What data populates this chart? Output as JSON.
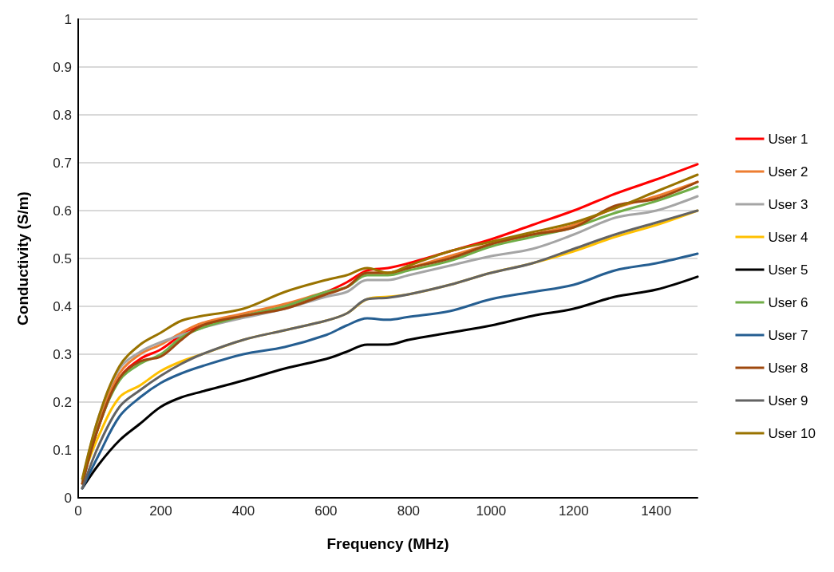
{
  "chart_data": {
    "type": "line",
    "xlabel": "Frequency (MHz)",
    "ylabel": "Conductivity (S/m)",
    "xlim": [
      0,
      1500
    ],
    "xticks": [
      0,
      200,
      400,
      600,
      800,
      1000,
      1200,
      1400
    ],
    "ylim": [
      0,
      1
    ],
    "yticks": [
      0,
      0.1,
      0.2,
      0.3,
      0.4,
      0.5,
      0.6,
      0.7,
      0.8,
      0.9,
      1
    ],
    "grid": "y",
    "legend": "right",
    "marker": "none",
    "line_style": "solid",
    "x": [
      10,
      50,
      100,
      150,
      200,
      250,
      300,
      400,
      500,
      600,
      650,
      700,
      750,
      800,
      900,
      1000,
      1100,
      1200,
      1300,
      1400,
      1500
    ],
    "series": [
      {
        "name": "User 1",
        "color": "#ff0000",
        "values": [
          0.03,
          0.15,
          0.25,
          0.29,
          0.31,
          0.34,
          0.36,
          0.38,
          0.4,
          0.43,
          0.45,
          0.475,
          0.48,
          0.49,
          0.515,
          0.54,
          0.57,
          0.6,
          0.635,
          0.665,
          0.697
        ]
      },
      {
        "name": "User 2",
        "color": "#ed7d31",
        "values": [
          0.03,
          0.16,
          0.26,
          0.3,
          0.32,
          0.345,
          0.365,
          0.385,
          0.405,
          0.43,
          0.44,
          0.47,
          0.47,
          0.48,
          0.505,
          0.53,
          0.55,
          0.57,
          0.605,
          0.63,
          0.66
        ]
      },
      {
        "name": "User 3",
        "color": "#a5a5a5",
        "values": [
          0.035,
          0.17,
          0.27,
          0.305,
          0.325,
          0.34,
          0.355,
          0.376,
          0.395,
          0.42,
          0.43,
          0.455,
          0.455,
          0.465,
          0.485,
          0.505,
          0.52,
          0.55,
          0.585,
          0.6,
          0.63
        ]
      },
      {
        "name": "User 4",
        "color": "#ffc000",
        "values": [
          0.04,
          0.13,
          0.21,
          0.235,
          0.265,
          0.285,
          0.3,
          0.33,
          0.35,
          0.37,
          0.385,
          0.415,
          0.42,
          0.425,
          0.445,
          0.47,
          0.49,
          0.515,
          0.545,
          0.57,
          0.6
        ]
      },
      {
        "name": "User 5",
        "color": "#000000",
        "values": [
          0.02,
          0.07,
          0.12,
          0.155,
          0.19,
          0.21,
          0.222,
          0.245,
          0.27,
          0.29,
          0.305,
          0.32,
          0.32,
          0.33,
          0.345,
          0.36,
          0.38,
          0.395,
          0.42,
          0.435,
          0.462
        ]
      },
      {
        "name": "User 6",
        "color": "#70ad47",
        "values": [
          0.03,
          0.15,
          0.245,
          0.28,
          0.3,
          0.335,
          0.355,
          0.38,
          0.4,
          0.43,
          0.44,
          0.465,
          0.465,
          0.475,
          0.495,
          0.525,
          0.545,
          0.565,
          0.595,
          0.62,
          0.65
        ]
      },
      {
        "name": "User 7",
        "color": "#255e91",
        "values": [
          0.02,
          0.09,
          0.17,
          0.21,
          0.24,
          0.26,
          0.275,
          0.3,
          0.315,
          0.34,
          0.36,
          0.375,
          0.372,
          0.378,
          0.39,
          0.415,
          0.43,
          0.445,
          0.475,
          0.49,
          0.51
        ]
      },
      {
        "name": "User 8",
        "color": "#9e480e",
        "values": [
          0.03,
          0.15,
          0.25,
          0.285,
          0.295,
          0.33,
          0.36,
          0.38,
          0.395,
          0.425,
          0.44,
          0.47,
          0.47,
          0.48,
          0.5,
          0.53,
          0.55,
          0.565,
          0.61,
          0.625,
          0.66
        ]
      },
      {
        "name": "User 9",
        "color": "#636363",
        "values": [
          0.02,
          0.11,
          0.19,
          0.225,
          0.255,
          0.28,
          0.3,
          0.33,
          0.35,
          0.37,
          0.385,
          0.415,
          0.418,
          0.425,
          0.445,
          0.47,
          0.49,
          0.52,
          0.55,
          0.575,
          0.6
        ]
      },
      {
        "name": "User 10",
        "color": "#997300",
        "values": [
          0.04,
          0.17,
          0.275,
          0.32,
          0.345,
          0.37,
          0.38,
          0.395,
          0.43,
          0.455,
          0.465,
          0.48,
          0.47,
          0.485,
          0.515,
          0.535,
          0.555,
          0.575,
          0.605,
          0.64,
          0.675
        ]
      }
    ]
  }
}
